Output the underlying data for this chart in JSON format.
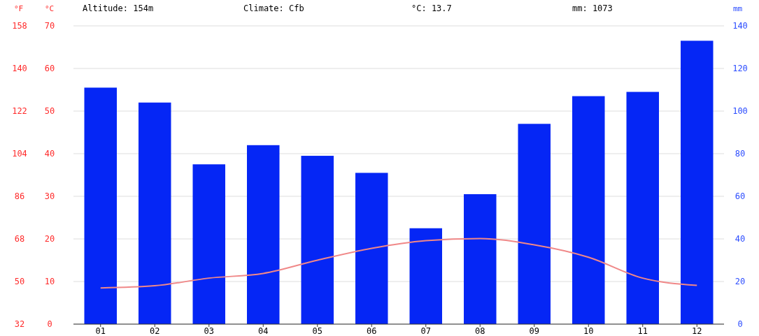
{
  "chart_data": {
    "type": "bar",
    "categories": [
      "01",
      "02",
      "03",
      "04",
      "05",
      "06",
      "07",
      "08",
      "09",
      "10",
      "11",
      "12"
    ],
    "series": [
      {
        "axis": "y2",
        "color": "#0526f5",
        "values": [
          111,
          104,
          75,
          84,
          79,
          71,
          45,
          61,
          94,
          107,
          109,
          133
        ]
      },
      {
        "type": "line",
        "axis": "y",
        "color": "#f08888",
        "values": [
          8.5,
          9.0,
          10.8,
          11.9,
          15.0,
          17.8,
          19.6,
          20.1,
          18.6,
          15.7,
          10.8,
          9.1
        ]
      }
    ],
    "ylabel": "°C",
    "ylim": [
      0,
      70
    ],
    "yticks": [
      0,
      10,
      20,
      30,
      40,
      50,
      60,
      70
    ],
    "y2label": "mm",
    "y2lim": [
      0,
      140
    ],
    "y2ticks": [
      0,
      20,
      40,
      60,
      80,
      100,
      120,
      140
    ],
    "y3label": "°F",
    "y3lim": [
      32,
      158
    ],
    "y3ticks": [
      32,
      50,
      68,
      86,
      104,
      122,
      140,
      158
    ],
    "annotations": [
      "Altitude: 154m",
      "Climate: Cfb",
      "°C: 13.7",
      "mm: 1073"
    ],
    "grid": "y",
    "marker": "none",
    "line_style": "solid"
  }
}
